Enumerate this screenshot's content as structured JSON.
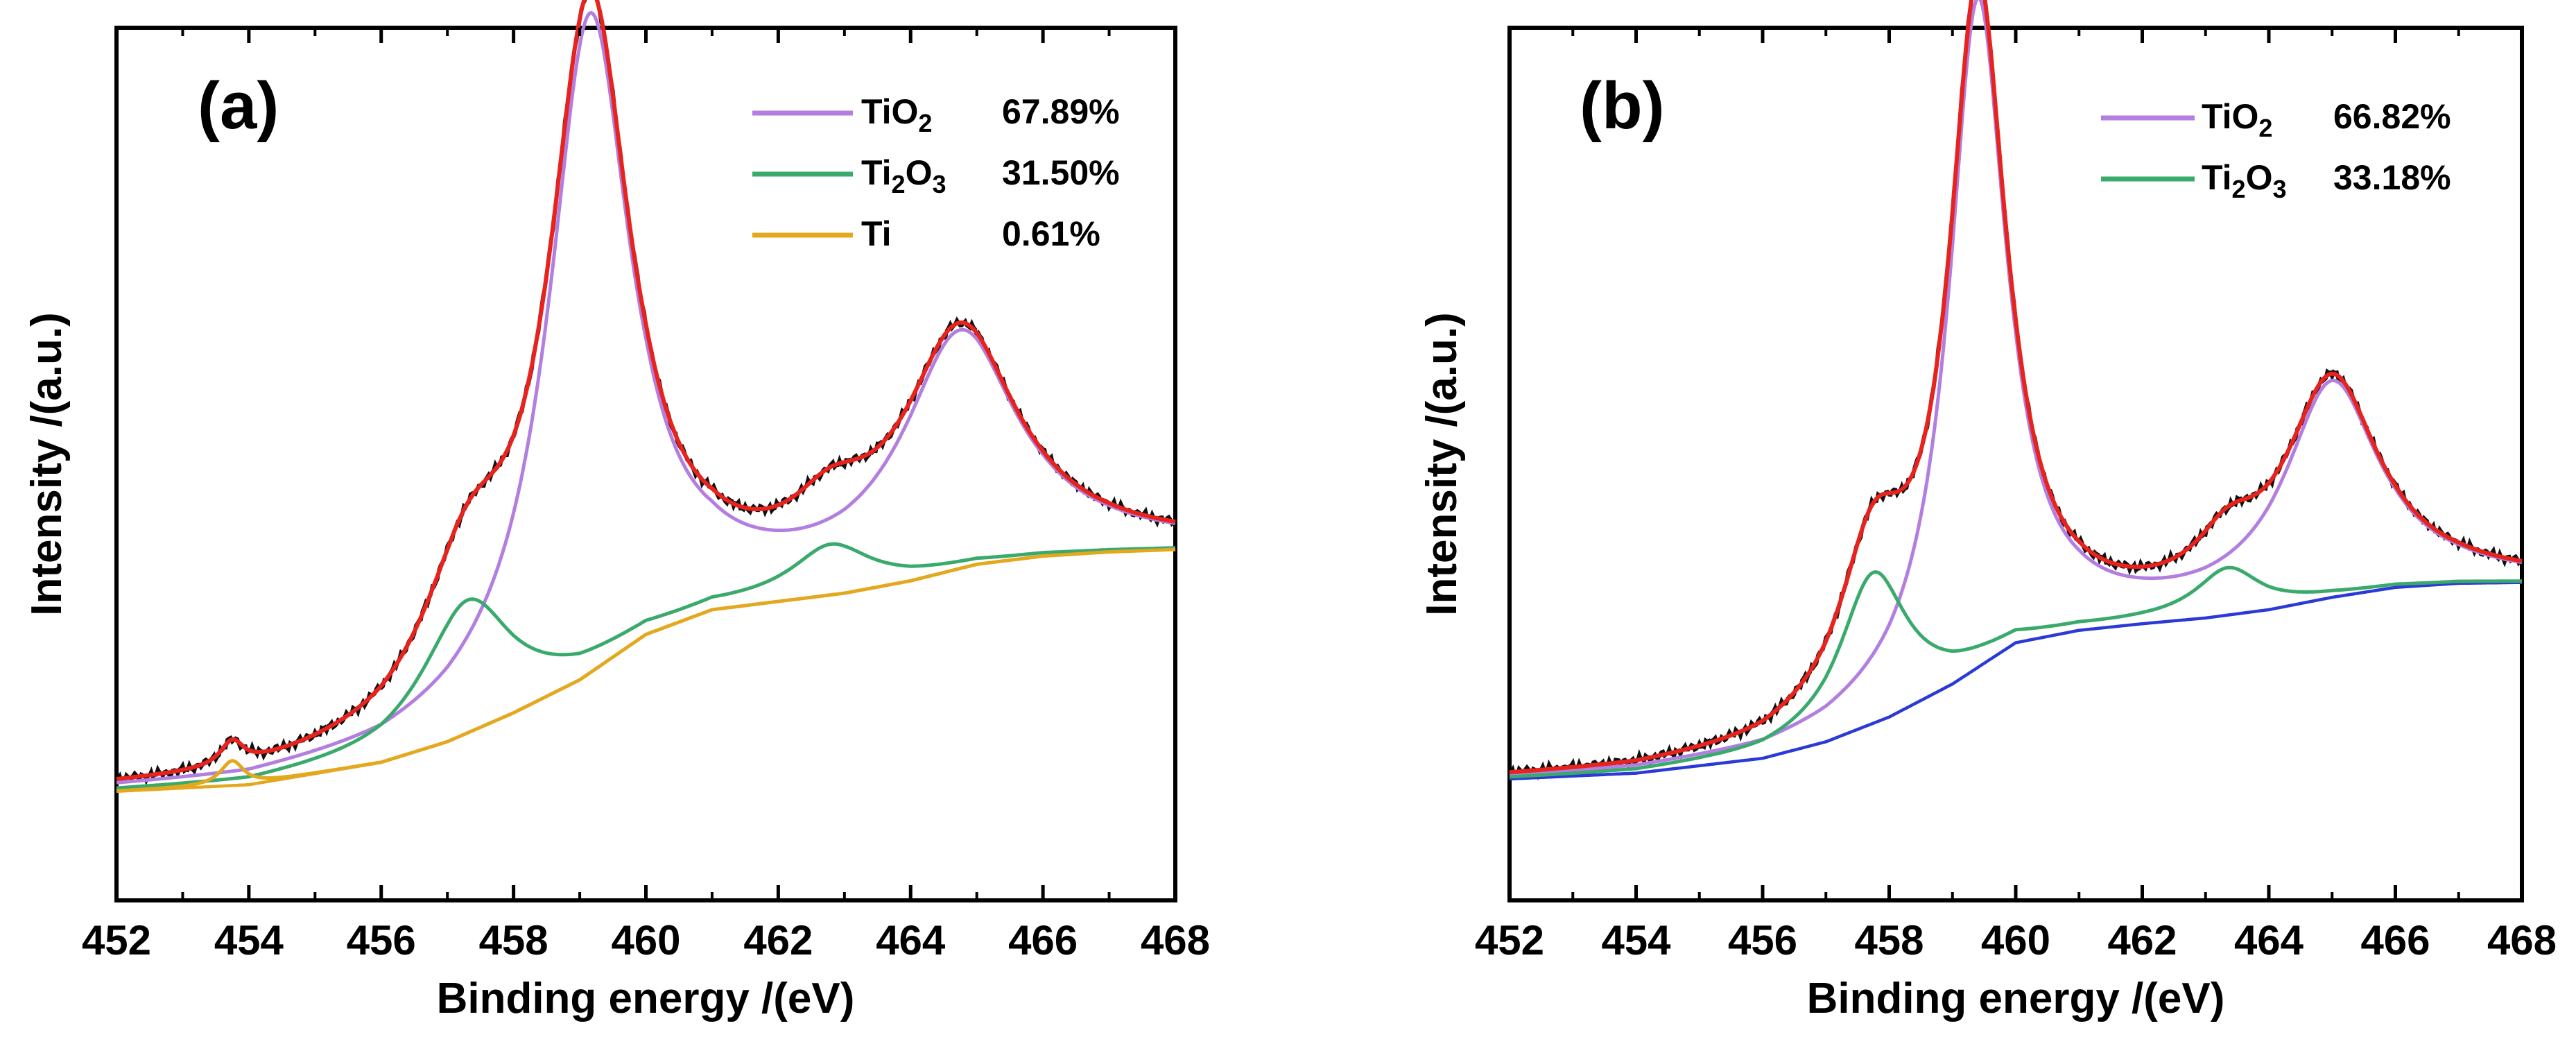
{
  "chart_data": [
    {
      "type": "line",
      "panel_label": "(a)",
      "xlabel": "Binding energy /(eV)",
      "ylabel": "Intensity /(a.u.)",
      "xlim": [
        452,
        468
      ],
      "ylim": [
        0,
        100
      ],
      "x_ticks": [
        452,
        454,
        456,
        458,
        460,
        462,
        464,
        466,
        468
      ],
      "x_tick_labels": [
        "452",
        "454",
        "456",
        "458",
        "460",
        "462",
        "464",
        "466",
        "468"
      ],
      "legend_position": "top-right",
      "legend": [
        {
          "name": "TiO2",
          "label_main": "TiO",
          "label_sub": "2",
          "label_after": "",
          "percent": "67.89%",
          "color": "#b27ee0"
        },
        {
          "name": "Ti2O3",
          "label_main": "Ti",
          "label_sub": "2",
          "label_after": "O",
          "label_sub2": "3",
          "percent": "31.50%",
          "color": "#3aaa6c"
        },
        {
          "name": "Ti",
          "label_main": "Ti",
          "label_sub": "",
          "label_after": "",
          "percent": "0.61%",
          "color": "#e3a81d"
        }
      ],
      "background": [
        {
          "x": 452,
          "y": 7.5
        },
        {
          "x": 454,
          "y": 8.3
        },
        {
          "x": 456,
          "y": 11
        },
        {
          "x": 457,
          "y": 13.5
        },
        {
          "x": 458,
          "y": 17
        },
        {
          "x": 459,
          "y": 21
        },
        {
          "x": 460,
          "y": 26.5
        },
        {
          "x": 461,
          "y": 29.5
        },
        {
          "x": 462,
          "y": 30.5
        },
        {
          "x": 463,
          "y": 31.5
        },
        {
          "x": 464,
          "y": 33
        },
        {
          "x": 465,
          "y": 35
        },
        {
          "x": 466,
          "y": 36
        },
        {
          "x": 467,
          "y": 36.5
        },
        {
          "x": 468,
          "y": 36.8
        }
      ],
      "components": [
        {
          "name": "TiO2",
          "color": "#b27ee0",
          "peaks": [
            {
              "center": 459.15,
              "height": 79,
              "width": 0.75
            },
            {
              "center": 464.75,
              "height": 27.5,
              "width": 1.05
            }
          ]
        },
        {
          "name": "Ti2O3",
          "color": "#3aaa6c",
          "peaks": [
            {
              "center": 457.3,
              "height": 16,
              "width": 0.82
            },
            {
              "center": 462.8,
              "height": 5.8,
              "width": 0.72
            }
          ]
        },
        {
          "name": "Ti",
          "color": "#e3a81d",
          "peaks": [
            {
              "center": 453.75,
              "height": 3,
              "width": 0.22
            }
          ]
        }
      ]
    },
    {
      "type": "line",
      "panel_label": "(b)",
      "xlabel": "Binding energy /(eV)",
      "ylabel": "Intensity /(a.u.)",
      "xlim": [
        452,
        468
      ],
      "ylim": [
        0,
        100
      ],
      "x_ticks": [
        452,
        454,
        456,
        458,
        460,
        462,
        464,
        466,
        468
      ],
      "x_tick_labels": [
        "452",
        "454",
        "456",
        "458",
        "460",
        "462",
        "464",
        "466",
        "468"
      ],
      "legend_position": "top-right",
      "legend": [
        {
          "name": "TiO2",
          "label_main": "TiO",
          "label_sub": "2",
          "label_after": "",
          "percent": "66.82%",
          "color": "#b27ee0"
        },
        {
          "name": "Ti2O3",
          "label_main": "Ti",
          "label_sub": "2",
          "label_after": "O",
          "label_sub2": "3",
          "percent": "33.18%",
          "color": "#3aaa6c"
        }
      ],
      "background_color": "#2b39d6",
      "background": [
        {
          "x": 452,
          "y": 9
        },
        {
          "x": 454,
          "y": 9.7
        },
        {
          "x": 456,
          "y": 11.5
        },
        {
          "x": 457,
          "y": 13.5
        },
        {
          "x": 458,
          "y": 16.5
        },
        {
          "x": 459,
          "y": 20.5
        },
        {
          "x": 460,
          "y": 25.5
        },
        {
          "x": 461,
          "y": 27
        },
        {
          "x": 462,
          "y": 27.8
        },
        {
          "x": 463,
          "y": 28.5
        },
        {
          "x": 464,
          "y": 29.5
        },
        {
          "x": 465,
          "y": 31
        },
        {
          "x": 466,
          "y": 32.2
        },
        {
          "x": 467,
          "y": 32.7
        },
        {
          "x": 468,
          "y": 32.8
        }
      ],
      "components": [
        {
          "name": "TiO2",
          "color": "#b27ee0",
          "peaks": [
            {
              "center": 459.4,
              "height": 80.5,
              "width": 0.55
            },
            {
              "center": 465.0,
              "height": 25.5,
              "width": 0.9
            }
          ]
        },
        {
          "name": "Ti2O3",
          "color": "#3aaa6c",
          "peaks": [
            {
              "center": 457.75,
              "height": 18.2,
              "width": 0.65
            },
            {
              "center": 463.35,
              "height": 5.5,
              "width": 0.62
            }
          ]
        }
      ]
    }
  ]
}
